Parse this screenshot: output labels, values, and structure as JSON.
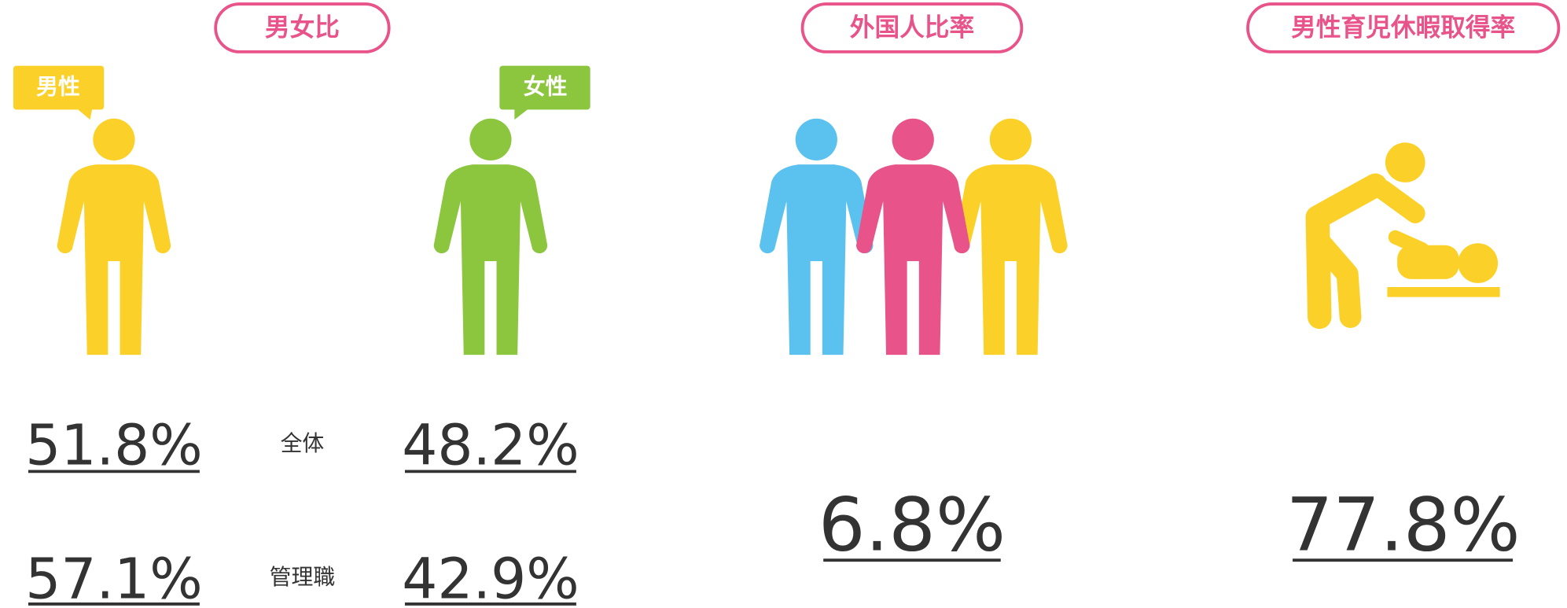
{
  "sections": [
    {
      "title": "男女比",
      "labels": [
        "男性",
        "女性"
      ],
      "rows": [
        {
          "label": "全体",
          "male": "51.8%",
          "female": "48.2%"
        },
        {
          "label": "管理職",
          "male": "57.1%",
          "female": "42.9%"
        }
      ]
    },
    {
      "title": "外国人比率",
      "value": "6.8%"
    },
    {
      "title": "男性育児休暇取得率",
      "value": "77.8%"
    }
  ]
}
